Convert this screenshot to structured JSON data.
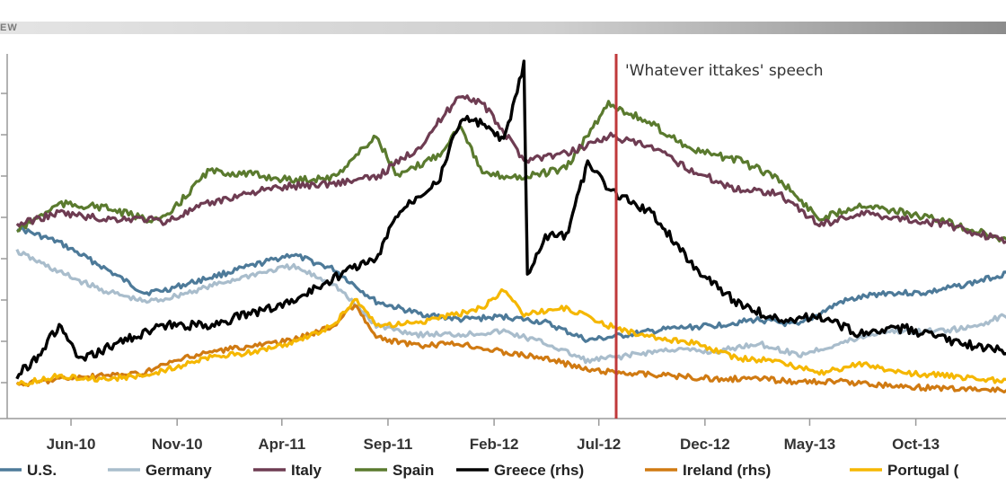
{
  "header": {
    "text": "EW"
  },
  "chart_data": {
    "type": "line",
    "title": "",
    "xlabel": "",
    "ylabel": "",
    "x_tick_labels": [
      "Jun-10",
      "Nov-10",
      "Apr-11",
      "Sep-11",
      "Feb-12",
      "Jul-12",
      "Dec-12",
      "May-13",
      "Oct-13"
    ],
    "x_range": [
      "2010-03",
      "2014-02"
    ],
    "annotation": {
      "label": "'Whatever ittakes' speech",
      "x": "2012-07-26",
      "color": "#c0393b"
    },
    "legend_placement": "bottom",
    "grid": "none",
    "series": [
      {
        "name": "U.S.",
        "color": "#4d7a99",
        "points": [
          [
            "2010-03",
            0.55
          ],
          [
            "2010-05",
            0.5
          ],
          [
            "2010-07",
            0.42
          ],
          [
            "2010-09",
            0.33
          ],
          [
            "2010-10",
            0.34
          ],
          [
            "2010-12",
            0.38
          ],
          [
            "2011-02",
            0.42
          ],
          [
            "2011-04",
            0.46
          ],
          [
            "2011-06",
            0.41
          ],
          [
            "2011-08",
            0.3
          ],
          [
            "2011-10",
            0.26
          ],
          [
            "2011-12",
            0.24
          ],
          [
            "2012-02",
            0.25
          ],
          [
            "2012-04",
            0.23
          ],
          [
            "2012-06",
            0.17
          ],
          [
            "2012-08",
            0.19
          ],
          [
            "2012-10",
            0.21
          ],
          [
            "2012-12",
            0.22
          ],
          [
            "2013-02",
            0.24
          ],
          [
            "2013-04",
            0.22
          ],
          [
            "2013-06",
            0.3
          ],
          [
            "2013-08",
            0.33
          ],
          [
            "2013-10",
            0.33
          ],
          [
            "2013-12",
            0.36
          ],
          [
            "2014-02",
            0.4
          ]
        ]
      },
      {
        "name": "Germany",
        "color": "#a9bdcc",
        "points": [
          [
            "2010-03",
            0.47
          ],
          [
            "2010-05",
            0.4
          ],
          [
            "2010-07",
            0.34
          ],
          [
            "2010-09",
            0.3
          ],
          [
            "2010-10",
            0.31
          ],
          [
            "2010-12",
            0.35
          ],
          [
            "2011-02",
            0.39
          ],
          [
            "2011-04",
            0.42
          ],
          [
            "2011-06",
            0.36
          ],
          [
            "2011-08",
            0.22
          ],
          [
            "2011-10",
            0.19
          ],
          [
            "2011-12",
            0.19
          ],
          [
            "2012-02",
            0.2
          ],
          [
            "2012-04",
            0.16
          ],
          [
            "2012-06",
            0.1
          ],
          [
            "2012-08",
            0.12
          ],
          [
            "2012-10",
            0.14
          ],
          [
            "2012-12",
            0.13
          ],
          [
            "2013-02",
            0.16
          ],
          [
            "2013-04",
            0.12
          ],
          [
            "2013-06",
            0.16
          ],
          [
            "2013-08",
            0.2
          ],
          [
            "2013-10",
            0.2
          ],
          [
            "2013-12",
            0.21
          ],
          [
            "2014-02",
            0.26
          ]
        ]
      },
      {
        "name": "Italy",
        "color": "#6e3c52",
        "points": [
          [
            "2010-03",
            0.56
          ],
          [
            "2010-05",
            0.6
          ],
          [
            "2010-07",
            0.58
          ],
          [
            "2010-09",
            0.58
          ],
          [
            "2010-10",
            0.57
          ],
          [
            "2010-12",
            0.63
          ],
          [
            "2011-02",
            0.67
          ],
          [
            "2011-04",
            0.69
          ],
          [
            "2011-06",
            0.7
          ],
          [
            "2011-08",
            0.72
          ],
          [
            "2011-10",
            0.82
          ],
          [
            "2011-12",
            1.0
          ],
          [
            "2012-01",
            0.97
          ],
          [
            "2012-03",
            0.78
          ],
          [
            "2012-05",
            0.8
          ],
          [
            "2012-07",
            0.86
          ],
          [
            "2012-09",
            0.82
          ],
          [
            "2012-11",
            0.74
          ],
          [
            "2013-01",
            0.68
          ],
          [
            "2013-03",
            0.67
          ],
          [
            "2013-05",
            0.56
          ],
          [
            "2013-07",
            0.6
          ],
          [
            "2013-09",
            0.58
          ],
          [
            "2013-11",
            0.56
          ],
          [
            "2014-02",
            0.5
          ]
        ]
      },
      {
        "name": "Spain",
        "color": "#5a7a2e",
        "points": [
          [
            "2010-03",
            0.54
          ],
          [
            "2010-05",
            0.63
          ],
          [
            "2010-07",
            0.62
          ],
          [
            "2010-09",
            0.58
          ],
          [
            "2010-10",
            0.58
          ],
          [
            "2010-12",
            0.74
          ],
          [
            "2011-02",
            0.73
          ],
          [
            "2011-04",
            0.71
          ],
          [
            "2011-06",
            0.72
          ],
          [
            "2011-08",
            0.86
          ],
          [
            "2011-09",
            0.72
          ],
          [
            "2011-11",
            0.8
          ],
          [
            "2011-12",
            0.9
          ],
          [
            "2012-01",
            0.73
          ],
          [
            "2012-03",
            0.72
          ],
          [
            "2012-05",
            0.75
          ],
          [
            "2012-07",
            0.97
          ],
          [
            "2012-09",
            0.9
          ],
          [
            "2012-11",
            0.81
          ],
          [
            "2013-01",
            0.78
          ],
          [
            "2013-03",
            0.72
          ],
          [
            "2013-05",
            0.58
          ],
          [
            "2013-07",
            0.63
          ],
          [
            "2013-09",
            0.6
          ],
          [
            "2013-11",
            0.57
          ],
          [
            "2014-02",
            0.5
          ]
        ]
      },
      {
        "name": "Greece (rhs)",
        "color": "#000000",
        "points": [
          [
            "2010-03",
            0.05
          ],
          [
            "2010-04",
            0.12
          ],
          [
            "2010-05",
            0.22
          ],
          [
            "2010-06",
            0.1
          ],
          [
            "2010-08",
            0.17
          ],
          [
            "2010-10",
            0.22
          ],
          [
            "2010-12",
            0.22
          ],
          [
            "2011-02",
            0.26
          ],
          [
            "2011-04",
            0.3
          ],
          [
            "2011-06",
            0.38
          ],
          [
            "2011-07",
            0.42
          ],
          [
            "2011-08",
            0.44
          ],
          [
            "2011-09",
            0.6
          ],
          [
            "2011-10",
            0.66
          ],
          [
            "2011-11",
            0.72
          ],
          [
            "2011-12",
            0.92
          ],
          [
            "2012-01",
            0.9
          ],
          [
            "2012-02",
            0.84
          ],
          [
            "2012-03",
            1.1
          ],
          [
            "2012-03-20",
            0.38
          ],
          [
            "2012-04",
            0.52
          ],
          [
            "2012-05",
            0.52
          ],
          [
            "2012-06",
            0.77
          ],
          [
            "2012-07",
            0.68
          ],
          [
            "2012-09",
            0.6
          ],
          [
            "2012-11",
            0.42
          ],
          [
            "2013-01",
            0.3
          ],
          [
            "2013-03",
            0.24
          ],
          [
            "2013-05",
            0.25
          ],
          [
            "2013-07",
            0.19
          ],
          [
            "2013-09",
            0.21
          ],
          [
            "2013-11",
            0.17
          ],
          [
            "2014-02",
            0.13
          ]
        ]
      },
      {
        "name": "Ireland (rhs)",
        "color": "#d07a12",
        "points": [
          [
            "2010-03",
            0.02
          ],
          [
            "2010-05",
            0.04
          ],
          [
            "2010-07",
            0.05
          ],
          [
            "2010-09",
            0.06
          ],
          [
            "2010-10",
            0.09
          ],
          [
            "2010-12",
            0.13
          ],
          [
            "2011-02",
            0.15
          ],
          [
            "2011-04",
            0.17
          ],
          [
            "2011-06",
            0.22
          ],
          [
            "2011-07",
            0.29
          ],
          [
            "2011-08",
            0.18
          ],
          [
            "2011-10",
            0.15
          ],
          [
            "2011-12",
            0.16
          ],
          [
            "2012-02",
            0.13
          ],
          [
            "2012-04",
            0.11
          ],
          [
            "2012-06",
            0.07
          ],
          [
            "2012-08",
            0.06
          ],
          [
            "2012-10",
            0.05
          ],
          [
            "2012-12",
            0.04
          ],
          [
            "2013-02",
            0.04
          ],
          [
            "2013-04",
            0.03
          ],
          [
            "2013-06",
            0.03
          ],
          [
            "2013-08",
            0.02
          ],
          [
            "2013-10",
            0.01
          ],
          [
            "2014-02",
            0.0
          ]
        ]
      },
      {
        "name": "Portugal (",
        "color": "#f5b700",
        "points": [
          [
            "2010-03",
            0.02
          ],
          [
            "2010-05",
            0.05
          ],
          [
            "2010-07",
            0.04
          ],
          [
            "2010-09",
            0.05
          ],
          [
            "2010-10",
            0.07
          ],
          [
            "2010-12",
            0.11
          ],
          [
            "2011-02",
            0.13
          ],
          [
            "2011-04",
            0.16
          ],
          [
            "2011-06",
            0.22
          ],
          [
            "2011-07",
            0.31
          ],
          [
            "2011-08",
            0.22
          ],
          [
            "2011-10",
            0.23
          ],
          [
            "2011-12",
            0.26
          ],
          [
            "2012-01",
            0.28
          ],
          [
            "2012-02",
            0.34
          ],
          [
            "2012-03",
            0.26
          ],
          [
            "2012-05",
            0.28
          ],
          [
            "2012-07",
            0.22
          ],
          [
            "2012-09",
            0.18
          ],
          [
            "2012-11",
            0.16
          ],
          [
            "2013-01",
            0.11
          ],
          [
            "2013-03",
            0.1
          ],
          [
            "2013-05",
            0.06
          ],
          [
            "2013-07",
            0.09
          ],
          [
            "2013-09",
            0.06
          ],
          [
            "2013-11",
            0.05
          ],
          [
            "2014-02",
            0.03
          ]
        ]
      }
    ]
  }
}
